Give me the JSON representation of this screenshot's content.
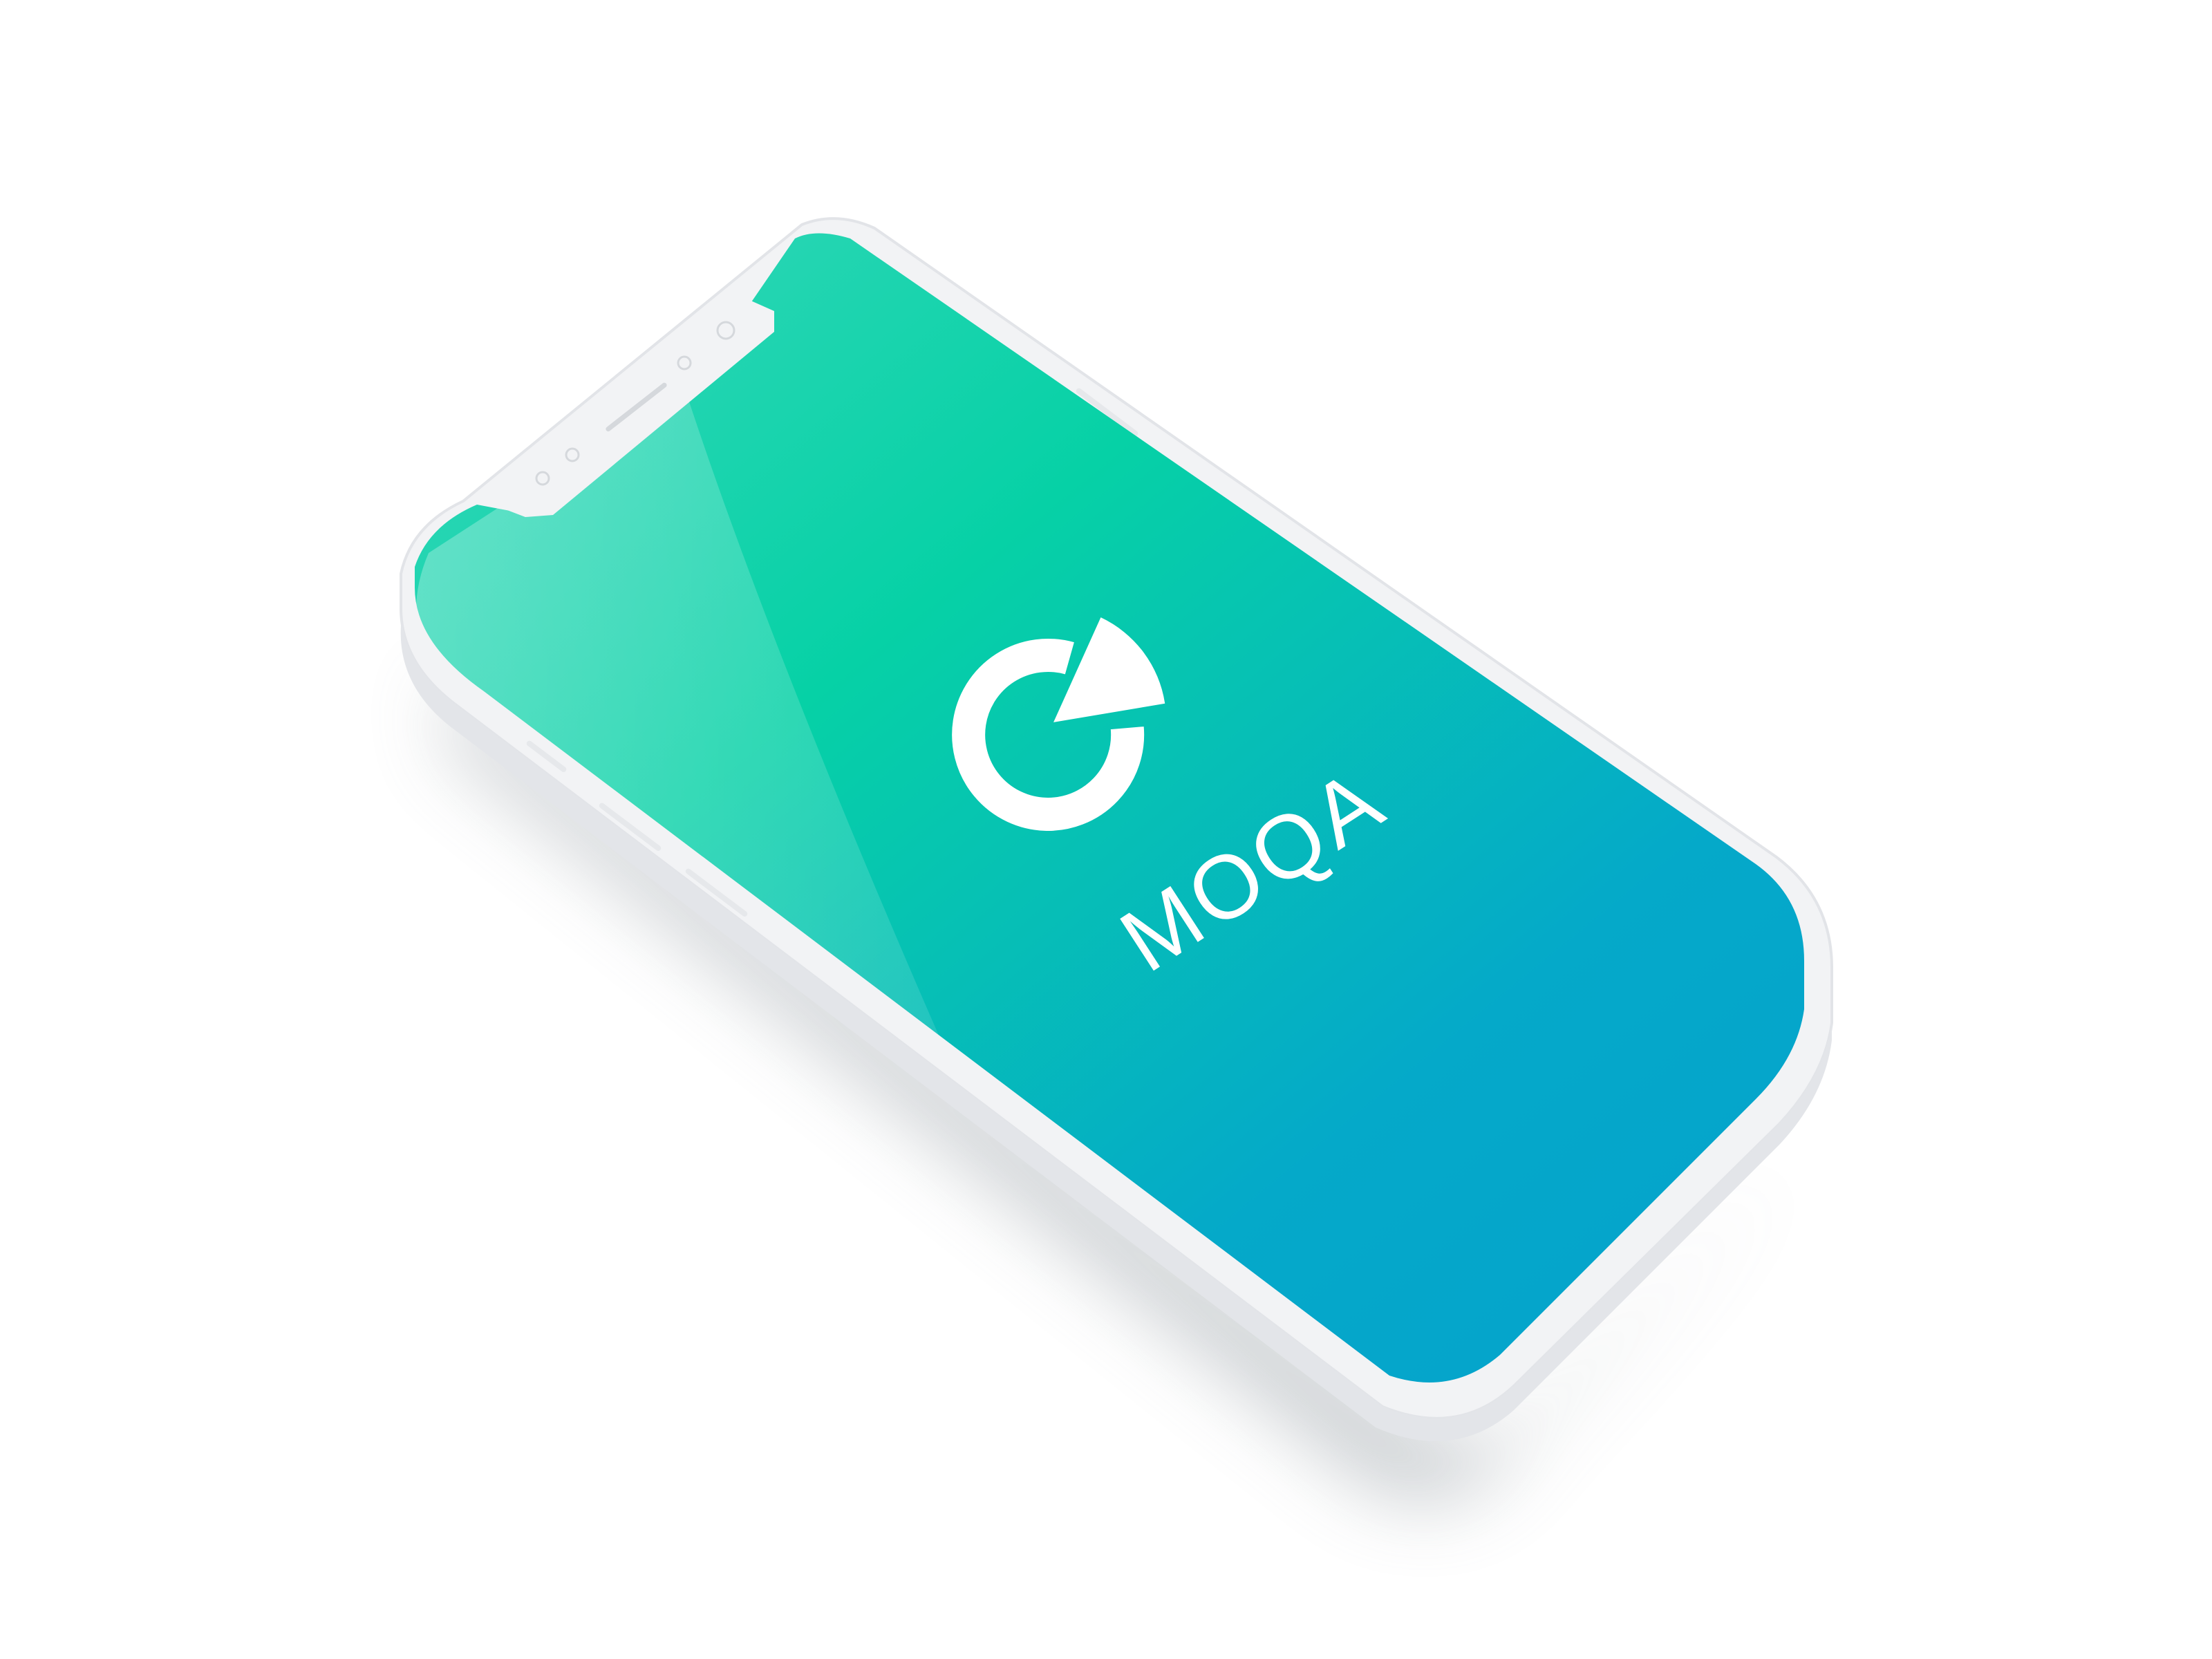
{
  "app": {
    "brand_name": "MOQA"
  },
  "splash": {
    "logo_icon": "moqa-pie-logo-icon",
    "gradient_start": "#06D1A6",
    "gradient_end": "#05A0CE",
    "logo_color": "#FFFFFF"
  },
  "device": {
    "frame_color": "#F2F3F5",
    "notch_icons": [
      "speaker-slot-icon",
      "front-camera-icon",
      "sensor-icon"
    ]
  }
}
